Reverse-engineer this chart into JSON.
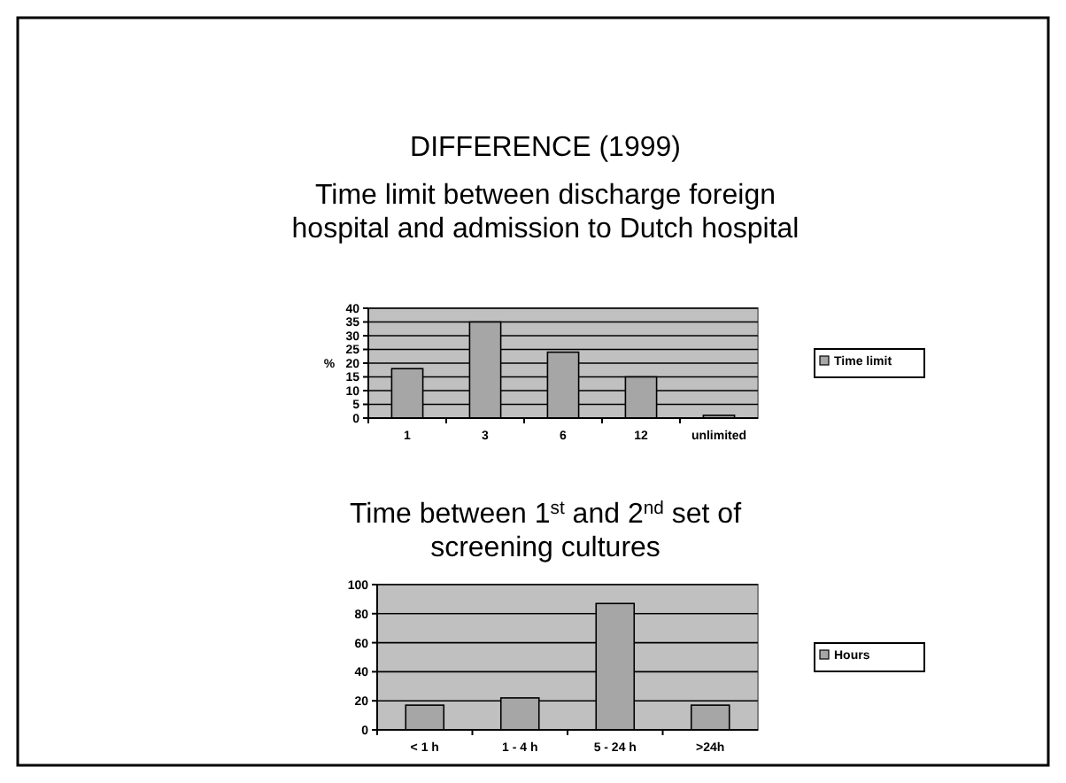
{
  "chart_data": [
    {
      "type": "bar",
      "title": "DIFFERENCE (1999)",
      "subtitle": "Time limit between discharge foreign hospital and admission to Dutch hospital",
      "ylabel": "%",
      "categories": [
        "1",
        "3",
        "6",
        "12",
        "unlimited"
      ],
      "series": [
        {
          "name": "Time limit",
          "color": "#a6a6a6",
          "values": [
            18,
            35,
            24,
            15,
            1
          ]
        }
      ],
      "ylim": [
        0,
        40
      ],
      "yticks": [
        0,
        5,
        10,
        15,
        20,
        25,
        30,
        35,
        40
      ],
      "grid": "y",
      "legend": "right"
    },
    {
      "type": "bar",
      "title": "Time between 1$^{st}$ and 2$^{nd}$ set of screening cultures",
      "categories": [
        "< 1 h",
        "1 - 4 h",
        "5 - 24 h",
        ">24h"
      ],
      "series": [
        {
          "name": "Hours",
          "color": "#a6a6a6",
          "values": [
            17,
            22,
            87,
            17
          ]
        }
      ],
      "ylim": [
        0,
        100
      ],
      "yticks": [
        0,
        20,
        40,
        60,
        80,
        100
      ],
      "grid": "y",
      "legend": "right"
    }
  ]
}
